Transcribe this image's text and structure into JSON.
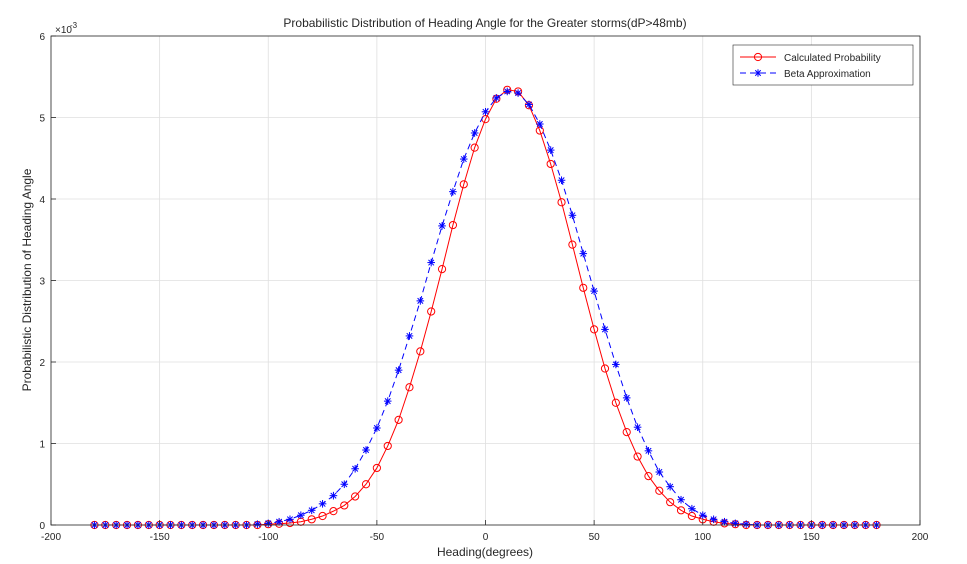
{
  "chart_data": {
    "type": "line",
    "title": "Probabilistic Distribution of Heading Angle for the Greater storms(dP>48mb)",
    "xlabel": "Heading(degrees)",
    "ylabel": "Probabilistic Distribution of Heading Angle",
    "y_exponent_label": "×10",
    "y_exponent_power": "-3",
    "xlim": [
      -200,
      200
    ],
    "ylim": [
      0,
      6
    ],
    "x_ticks": [
      -200,
      -150,
      -100,
      -50,
      0,
      50,
      100,
      150,
      200
    ],
    "y_ticks": [
      0,
      1,
      2,
      3,
      4,
      5,
      6
    ],
    "grid": true,
    "legend_position": "top-right",
    "series": [
      {
        "name": "Calculated Probability",
        "color": "#ff0000",
        "line_style": "solid",
        "marker": "circle",
        "x": [
          -180,
          -175,
          -170,
          -165,
          -160,
          -155,
          -150,
          -145,
          -140,
          -135,
          -130,
          -125,
          -120,
          -115,
          -110,
          -105,
          -100,
          -95,
          -90,
          -85,
          -80,
          -75,
          -70,
          -65,
          -60,
          -55,
          -50,
          -45,
          -40,
          -35,
          -30,
          -25,
          -20,
          -15,
          -10,
          -5,
          0,
          5,
          10,
          15,
          20,
          25,
          30,
          35,
          40,
          45,
          50,
          55,
          60,
          65,
          70,
          75,
          80,
          85,
          90,
          95,
          100,
          105,
          110,
          115,
          120,
          125,
          130,
          135,
          140,
          145,
          150,
          155,
          160,
          165,
          170,
          175,
          180
        ],
        "y": [
          0,
          0,
          0,
          0,
          0,
          0,
          0,
          0,
          0,
          0,
          0,
          0,
          0,
          0,
          0,
          0,
          0.01,
          0.015,
          0.025,
          0.04,
          0.07,
          0.11,
          0.17,
          0.24,
          0.35,
          0.5,
          0.7,
          0.97,
          1.29,
          1.69,
          2.13,
          2.62,
          3.14,
          3.68,
          4.18,
          4.63,
          4.98,
          5.23,
          5.34,
          5.32,
          5.15,
          4.84,
          4.43,
          3.96,
          3.44,
          2.91,
          2.4,
          1.92,
          1.5,
          1.14,
          0.84,
          0.6,
          0.42,
          0.28,
          0.18,
          0.11,
          0.07,
          0.04,
          0.02,
          0.01,
          0,
          0,
          0,
          0,
          0,
          0,
          0,
          0,
          0,
          0,
          0,
          0,
          0
        ]
      },
      {
        "name": "Beta Approximation",
        "color": "#0000ff",
        "line_style": "dashed",
        "marker": "asterisk",
        "x": [
          -180,
          -175,
          -170,
          -165,
          -160,
          -155,
          -150,
          -145,
          -140,
          -135,
          -130,
          -125,
          -120,
          -115,
          -110,
          -105,
          -100,
          -95,
          -90,
          -85,
          -80,
          -75,
          -70,
          -65,
          -60,
          -55,
          -50,
          -45,
          -40,
          -35,
          -30,
          -25,
          -20,
          -15,
          -10,
          -5,
          0,
          5,
          10,
          15,
          20,
          25,
          30,
          35,
          40,
          45,
          50,
          55,
          60,
          65,
          70,
          75,
          80,
          85,
          90,
          95,
          100,
          105,
          110,
          115,
          120,
          125,
          130,
          135,
          140,
          145,
          150,
          155,
          160,
          165,
          170,
          175,
          180
        ],
        "y": [
          0,
          0,
          0,
          0,
          0,
          0,
          0,
          0,
          0,
          0,
          0,
          0,
          0,
          0,
          0,
          0.01,
          0.02,
          0.04,
          0.07,
          0.12,
          0.18,
          0.26,
          0.36,
          0.5,
          0.69,
          0.92,
          1.19,
          1.52,
          1.9,
          2.32,
          2.75,
          3.22,
          3.67,
          4.09,
          4.49,
          4.81,
          5.07,
          5.24,
          5.32,
          5.3,
          5.16,
          4.92,
          4.6,
          4.23,
          3.8,
          3.33,
          2.87,
          2.4,
          1.97,
          1.56,
          1.2,
          0.91,
          0.65,
          0.47,
          0.31,
          0.2,
          0.12,
          0.07,
          0.04,
          0.02,
          0.01,
          0,
          0,
          0,
          0,
          0,
          0,
          0,
          0,
          0,
          0,
          0,
          0
        ]
      }
    ]
  }
}
